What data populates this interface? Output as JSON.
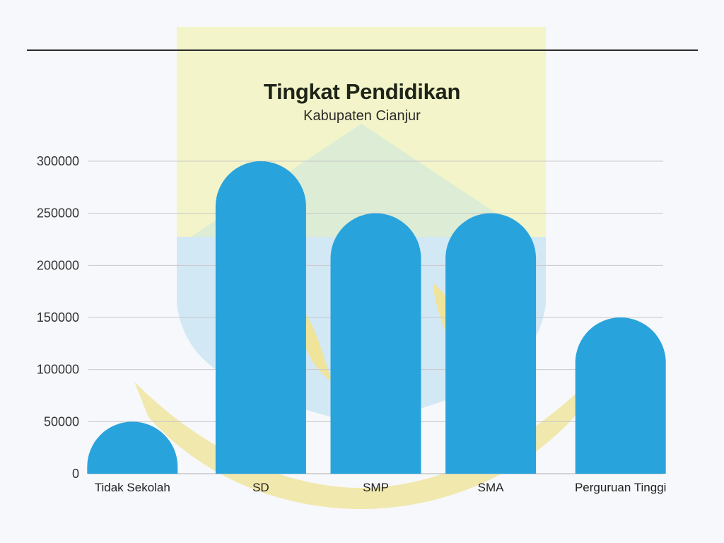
{
  "chart_data": {
    "type": "bar",
    "title": "Tingkat Pendidikan",
    "subtitle": "Kabupaten Cianjur",
    "categories": [
      "Tidak Sekolah",
      "SD",
      "SMP",
      "SMA",
      "Perguruan Tinggi"
    ],
    "values": [
      50000,
      300000,
      250000,
      250000,
      150000
    ],
    "yticks": [
      "0",
      "50000",
      "100000",
      "150000",
      "200000",
      "250000",
      "300000"
    ],
    "ylim": [
      0,
      300000
    ],
    "xlabel": "",
    "ylabel": "",
    "grid": true,
    "legend": "none",
    "bar_color": "#29a3dc",
    "grid_color": "#c9c9c9"
  },
  "watermark": {
    "yellow": "#f3f4c9",
    "blue": "#d3e8f5",
    "green": "#dcecd5",
    "gold": "#f0e39a"
  }
}
